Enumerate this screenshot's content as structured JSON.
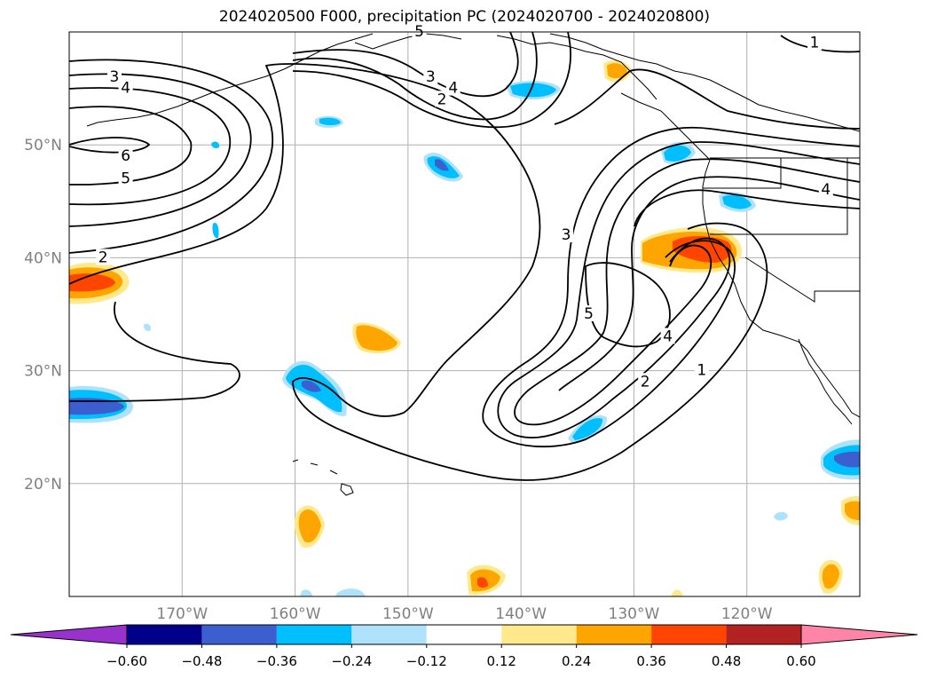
{
  "title": "2024020500 F000, precipitation PC (2024020700 - 2024020800)",
  "map": {
    "lon_range": [
      -180,
      -110
    ],
    "lat_range": [
      10,
      60
    ],
    "lat_ticks": [
      {
        "value": 50,
        "label": "50°N"
      },
      {
        "value": 40,
        "label": "40°N"
      },
      {
        "value": 30,
        "label": "30°N"
      },
      {
        "value": 20,
        "label": "20°N"
      }
    ],
    "lon_ticks": [
      {
        "value": -170,
        "label": "170°W"
      },
      {
        "value": -160,
        "label": "160°W"
      },
      {
        "value": -150,
        "label": "150°W"
      },
      {
        "value": -140,
        "label": "140°W"
      },
      {
        "value": -130,
        "label": "130°W"
      },
      {
        "value": -120,
        "label": "120°W"
      }
    ],
    "contour_labels": [
      {
        "text": "3",
        "lon": -176,
        "lat": 56
      },
      {
        "text": "4",
        "lon": -175,
        "lat": 55
      },
      {
        "text": "6",
        "lon": -175,
        "lat": 49
      },
      {
        "text": "5",
        "lon": -175,
        "lat": 47
      },
      {
        "text": "2",
        "lon": -177,
        "lat": 40
      },
      {
        "text": "5",
        "lon": -149,
        "lat": 60
      },
      {
        "text": "3",
        "lon": -148,
        "lat": 56
      },
      {
        "text": "4",
        "lon": -146,
        "lat": 55
      },
      {
        "text": "2",
        "lon": -147,
        "lat": 54
      },
      {
        "text": "1",
        "lon": -114,
        "lat": 59
      },
      {
        "text": "4",
        "lon": -113,
        "lat": 46
      },
      {
        "text": "3",
        "lon": -136,
        "lat": 42
      },
      {
        "text": "5",
        "lon": -134,
        "lat": 35
      },
      {
        "text": "4",
        "lon": -127,
        "lat": 33
      },
      {
        "text": "2",
        "lon": -129,
        "lat": 29
      },
      {
        "text": "1",
        "lon": -124,
        "lat": 30
      }
    ]
  },
  "colorbar": {
    "ticks": [
      "−0.60",
      "−0.48",
      "−0.36",
      "−0.24",
      "−0.12",
      "0.12",
      "0.24",
      "0.36",
      "0.48",
      "0.60"
    ],
    "colors": [
      "#9932cc",
      "#00008b",
      "#3c5fd0",
      "#00bfff",
      "#aee2fa",
      "#ffffff",
      "#ffe98a",
      "#ffa500",
      "#ff4500",
      "#b22222",
      "#ff85a8"
    ]
  }
}
